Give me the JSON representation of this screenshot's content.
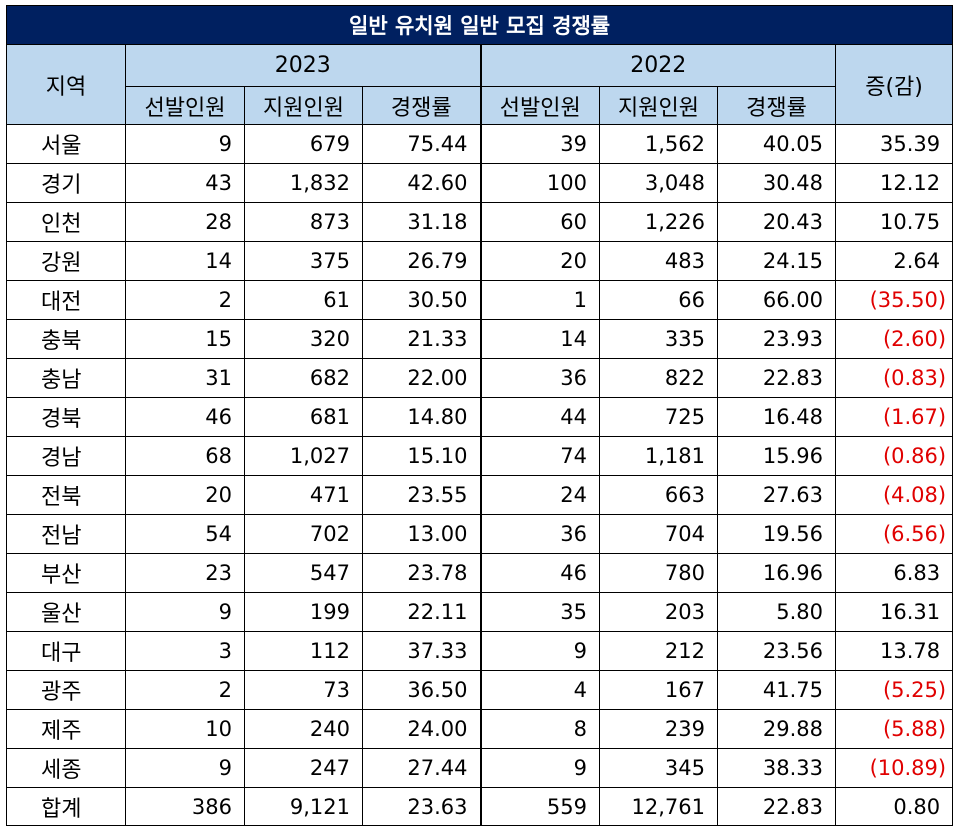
{
  "title": "일반 유치원 일반 모집 경쟁률",
  "headers": {
    "region": "지역",
    "year_a": "2023",
    "year_b": "2022",
    "change": "증(감)",
    "sub": [
      "선발인원",
      "지원인원",
      "경쟁률",
      "선발인원",
      "지원인원",
      "경쟁률"
    ]
  },
  "rows": [
    {
      "region": "서울",
      "a_sel": "9",
      "a_app": "679",
      "a_rate": "75.44",
      "b_sel": "39",
      "b_app": "1,562",
      "b_rate": "40.05",
      "change": "35.39",
      "negative": false
    },
    {
      "region": "경기",
      "a_sel": "43",
      "a_app": "1,832",
      "a_rate": "42.60",
      "b_sel": "100",
      "b_app": "3,048",
      "b_rate": "30.48",
      "change": "12.12",
      "negative": false
    },
    {
      "region": "인천",
      "a_sel": "28",
      "a_app": "873",
      "a_rate": "31.18",
      "b_sel": "60",
      "b_app": "1,226",
      "b_rate": "20.43",
      "change": "10.75",
      "negative": false
    },
    {
      "region": "강원",
      "a_sel": "14",
      "a_app": "375",
      "a_rate": "26.79",
      "b_sel": "20",
      "b_app": "483",
      "b_rate": "24.15",
      "change": "2.64",
      "negative": false
    },
    {
      "region": "대전",
      "a_sel": "2",
      "a_app": "61",
      "a_rate": "30.50",
      "b_sel": "1",
      "b_app": "66",
      "b_rate": "66.00",
      "change": "(35.50)",
      "negative": true
    },
    {
      "region": "충북",
      "a_sel": "15",
      "a_app": "320",
      "a_rate": "21.33",
      "b_sel": "14",
      "b_app": "335",
      "b_rate": "23.93",
      "change": "(2.60)",
      "negative": true
    },
    {
      "region": "충남",
      "a_sel": "31",
      "a_app": "682",
      "a_rate": "22.00",
      "b_sel": "36",
      "b_app": "822",
      "b_rate": "22.83",
      "change": "(0.83)",
      "negative": true
    },
    {
      "region": "경북",
      "a_sel": "46",
      "a_app": "681",
      "a_rate": "14.80",
      "b_sel": "44",
      "b_app": "725",
      "b_rate": "16.48",
      "change": "(1.67)",
      "negative": true
    },
    {
      "region": "경남",
      "a_sel": "68",
      "a_app": "1,027",
      "a_rate": "15.10",
      "b_sel": "74",
      "b_app": "1,181",
      "b_rate": "15.96",
      "change": "(0.86)",
      "negative": true
    },
    {
      "region": "전북",
      "a_sel": "20",
      "a_app": "471",
      "a_rate": "23.55",
      "b_sel": "24",
      "b_app": "663",
      "b_rate": "27.63",
      "change": "(4.08)",
      "negative": true
    },
    {
      "region": "전남",
      "a_sel": "54",
      "a_app": "702",
      "a_rate": "13.00",
      "b_sel": "36",
      "b_app": "704",
      "b_rate": "19.56",
      "change": "(6.56)",
      "negative": true
    },
    {
      "region": "부산",
      "a_sel": "23",
      "a_app": "547",
      "a_rate": "23.78",
      "b_sel": "46",
      "b_app": "780",
      "b_rate": "16.96",
      "change": "6.83",
      "negative": false
    },
    {
      "region": "울산",
      "a_sel": "9",
      "a_app": "199",
      "a_rate": "22.11",
      "b_sel": "35",
      "b_app": "203",
      "b_rate": "5.80",
      "change": "16.31",
      "negative": false
    },
    {
      "region": "대구",
      "a_sel": "3",
      "a_app": "112",
      "a_rate": "37.33",
      "b_sel": "9",
      "b_app": "212",
      "b_rate": "23.56",
      "change": "13.78",
      "negative": false
    },
    {
      "region": "광주",
      "a_sel": "2",
      "a_app": "73",
      "a_rate": "36.50",
      "b_sel": "4",
      "b_app": "167",
      "b_rate": "41.75",
      "change": "(5.25)",
      "negative": true
    },
    {
      "region": "제주",
      "a_sel": "10",
      "a_app": "240",
      "a_rate": "24.00",
      "b_sel": "8",
      "b_app": "239",
      "b_rate": "29.88",
      "change": "(5.88)",
      "negative": true
    },
    {
      "region": "세종",
      "a_sel": "9",
      "a_app": "247",
      "a_rate": "27.44",
      "b_sel": "9",
      "b_app": "345",
      "b_rate": "38.33",
      "change": "(10.89)",
      "negative": true
    },
    {
      "region": "합계",
      "a_sel": "386",
      "a_app": "9,121",
      "a_rate": "23.63",
      "b_sel": "559",
      "b_app": "12,761",
      "b_rate": "22.83",
      "change": "0.80",
      "negative": false
    }
  ],
  "colors": {
    "title_bg": "#002060",
    "header_bg": "#bdd7ee",
    "negative_text": "#e00000"
  }
}
